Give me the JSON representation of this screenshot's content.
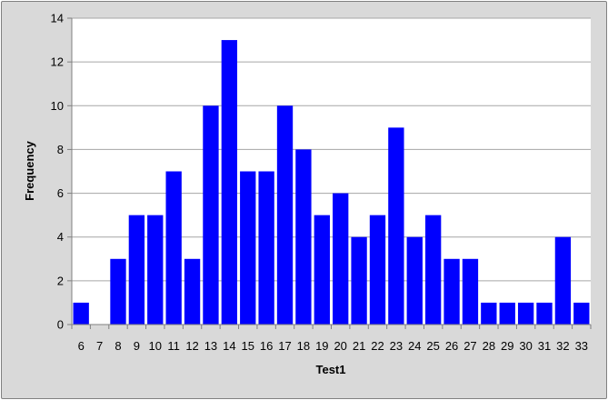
{
  "chart_data": {
    "type": "bar",
    "title": "",
    "xlabel": "Test1",
    "ylabel": "Frequency",
    "categories": [
      "6",
      "7",
      "8",
      "9",
      "10",
      "11",
      "12",
      "13",
      "14",
      "15",
      "16",
      "17",
      "18",
      "19",
      "20",
      "21",
      "22",
      "23",
      "24",
      "25",
      "26",
      "27",
      "28",
      "29",
      "30",
      "31",
      "32",
      "33"
    ],
    "values": [
      1,
      0,
      3,
      5,
      5,
      7,
      3,
      10,
      13,
      7,
      7,
      10,
      8,
      5,
      6,
      4,
      5,
      9,
      4,
      5,
      3,
      3,
      1,
      1,
      1,
      1,
      4,
      1
    ],
    "ylim": [
      0,
      14
    ],
    "yticks": [
      0,
      2,
      4,
      6,
      8,
      10,
      12,
      14
    ],
    "grid": "horizontal",
    "legend": "none",
    "colors": {
      "bar": "#0000ff",
      "chart_background": "#d9d9d9",
      "plot_background": "#ffffff",
      "gridline": "#a6a6a6",
      "axis": "#808080"
    }
  }
}
